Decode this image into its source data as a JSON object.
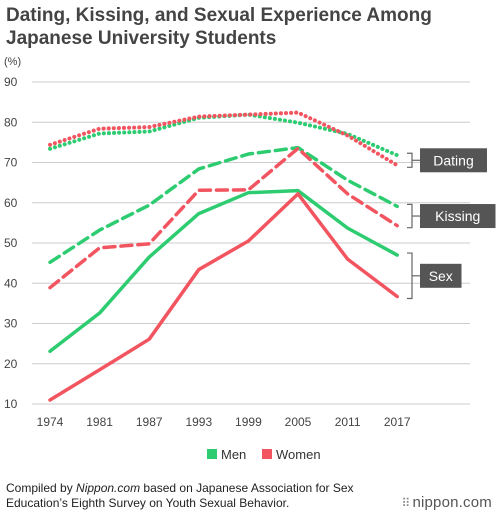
{
  "title": "Dating, Kissing, and Sexual Experience Among Japanese University Students",
  "footer": {
    "prefix": "Compiled by ",
    "source": "Nippon.com",
    "suffix": " based on Japanese Association for Sex Education’s Eighth Survey on Youth Sexual Behavior."
  },
  "brand": "nippon.com",
  "colors": {
    "men": "#2ecc71",
    "women": "#f25560",
    "grid": "#cccccc",
    "label_bg": "#555555"
  },
  "chart_data": {
    "type": "line",
    "ylabel": "(%)",
    "ylim": [
      10,
      90
    ],
    "yticks": [
      10,
      20,
      30,
      40,
      50,
      60,
      70,
      80,
      90
    ],
    "x": [
      "1974",
      "1981",
      "1987",
      "1993",
      "1999",
      "2005",
      "2011",
      "2017"
    ],
    "legend": {
      "position": "bottom",
      "entries": [
        "Men",
        "Women"
      ]
    },
    "group_labels": [
      "Dating",
      "Kissing",
      "Sex"
    ],
    "series": [
      {
        "name": "Men",
        "group": "Dating",
        "style": "dotted",
        "values": [
          73.4,
          77.2,
          77.7,
          81.1,
          81.9,
          79.9,
          77.1,
          71.8
        ]
      },
      {
        "name": "Women",
        "group": "Dating",
        "style": "dotted",
        "values": [
          74.4,
          78.4,
          78.8,
          81.4,
          81.9,
          82.4,
          76.7,
          69.3
        ]
      },
      {
        "name": "Men",
        "group": "Kissing",
        "style": "dashed",
        "values": [
          45.2,
          53.2,
          59.4,
          68.4,
          72.1,
          73.7,
          65.6,
          59.1
        ]
      },
      {
        "name": "Women",
        "group": "Kissing",
        "style": "dashed",
        "values": [
          38.9,
          48.8,
          49.8,
          63.1,
          63.2,
          73.5,
          62.2,
          54.3
        ]
      },
      {
        "name": "Men",
        "group": "Sex",
        "style": "solid",
        "values": [
          23.1,
          32.6,
          46.5,
          57.3,
          62.5,
          63.0,
          53.7,
          47.0
        ]
      },
      {
        "name": "Women",
        "group": "Sex",
        "style": "solid",
        "values": [
          11.0,
          18.5,
          26.1,
          43.4,
          50.5,
          62.2,
          46.0,
          36.7
        ]
      }
    ]
  }
}
